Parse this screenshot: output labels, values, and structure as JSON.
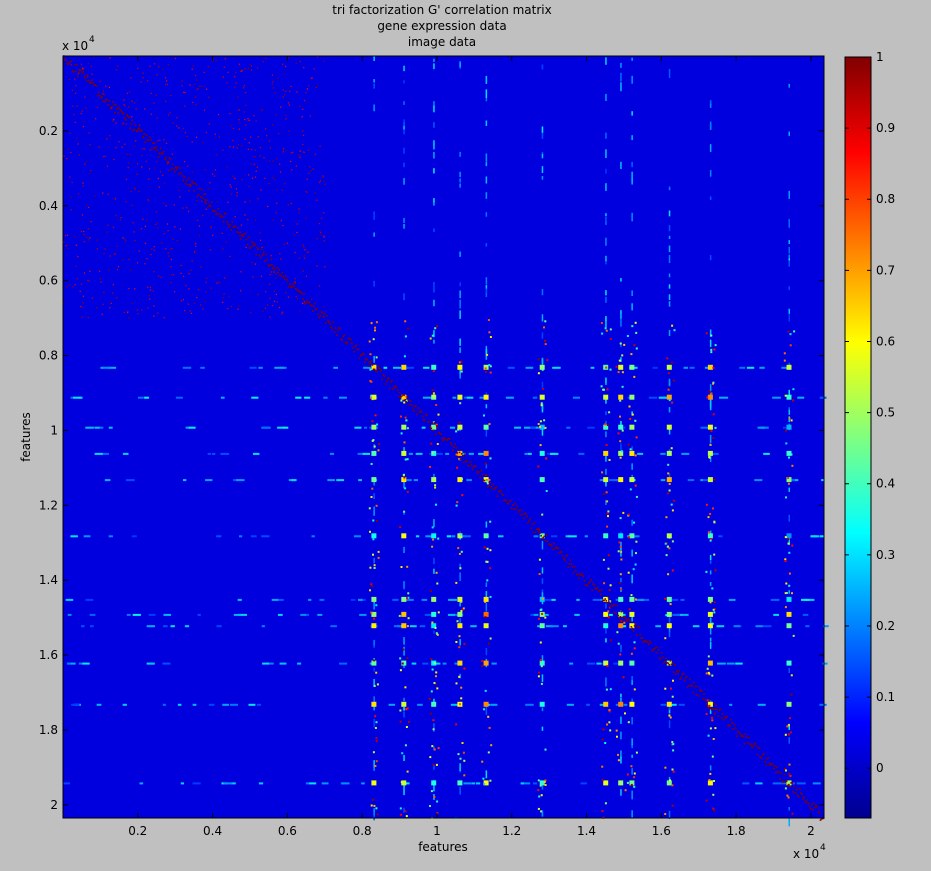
{
  "chart_data": {
    "type": "heatmap",
    "title_lines": [
      "tri factorization G' correlation matrix",
      "gene expression data",
      "image data"
    ],
    "xlabel": "features",
    "ylabel": "features",
    "x_exponent_base": "x 10",
    "x_exponent_power": "4",
    "y_exponent_base": "x 10",
    "y_exponent_power": "4",
    "xlim": [
      0,
      20350
    ],
    "ylim": [
      0,
      20350
    ],
    "x_ticks": [
      {
        "value": 2000,
        "label": "0.2"
      },
      {
        "value": 4000,
        "label": "0.4"
      },
      {
        "value": 6000,
        "label": "0.6"
      },
      {
        "value": 8000,
        "label": "0.8"
      },
      {
        "value": 10000,
        "label": "1"
      },
      {
        "value": 12000,
        "label": "1.2"
      },
      {
        "value": 14000,
        "label": "1.4"
      },
      {
        "value": 16000,
        "label": "1.6"
      },
      {
        "value": 18000,
        "label": "1.8"
      },
      {
        "value": 20000,
        "label": "2"
      }
    ],
    "y_ticks": [
      {
        "value": 2000,
        "label": "0.2"
      },
      {
        "value": 4000,
        "label": "0.4"
      },
      {
        "value": 6000,
        "label": "0.6"
      },
      {
        "value": 8000,
        "label": "0.8"
      },
      {
        "value": 10000,
        "label": "1"
      },
      {
        "value": 12000,
        "label": "1.2"
      },
      {
        "value": 14000,
        "label": "1.4"
      },
      {
        "value": 16000,
        "label": "1.6"
      },
      {
        "value": 18000,
        "label": "1.8"
      },
      {
        "value": 20000,
        "label": "2"
      }
    ],
    "colorbar": {
      "colormap": "jet",
      "clim": [
        -0.07,
        1.0
      ],
      "ticks": [
        {
          "value": 0,
          "label": "0"
        },
        {
          "value": 0.1,
          "label": "0.1"
        },
        {
          "value": 0.2,
          "label": "0.2"
        },
        {
          "value": 0.3,
          "label": "0.3"
        },
        {
          "value": 0.4,
          "label": "0.4"
        },
        {
          "value": 0.5,
          "label": "0.5"
        },
        {
          "value": 0.6,
          "label": "0.6"
        },
        {
          "value": 0.7,
          "label": "0.7"
        },
        {
          "value": 0.8,
          "label": "0.8"
        },
        {
          "value": 0.9,
          "label": "0.9"
        },
        {
          "value": 1,
          "label": "1"
        }
      ]
    },
    "background_value": 0.03,
    "block_boundary": 7000,
    "diagonal_value": 1.0,
    "hot_features": [
      {
        "index": 8300,
        "value": 0.55
      },
      {
        "index": 9100,
        "value": 0.6
      },
      {
        "index": 9900,
        "value": 0.35
      },
      {
        "index": 10600,
        "value": 0.58
      },
      {
        "index": 11300,
        "value": 0.62
      },
      {
        "index": 12800,
        "value": 0.3
      },
      {
        "index": 14500,
        "value": 0.45
      },
      {
        "index": 14900,
        "value": 0.6
      },
      {
        "index": 15200,
        "value": 0.55
      },
      {
        "index": 16200,
        "value": 0.5
      },
      {
        "index": 17300,
        "value": 0.58
      },
      {
        "index": 19400,
        "value": 0.4
      }
    ],
    "grid": false,
    "legend": "none"
  }
}
